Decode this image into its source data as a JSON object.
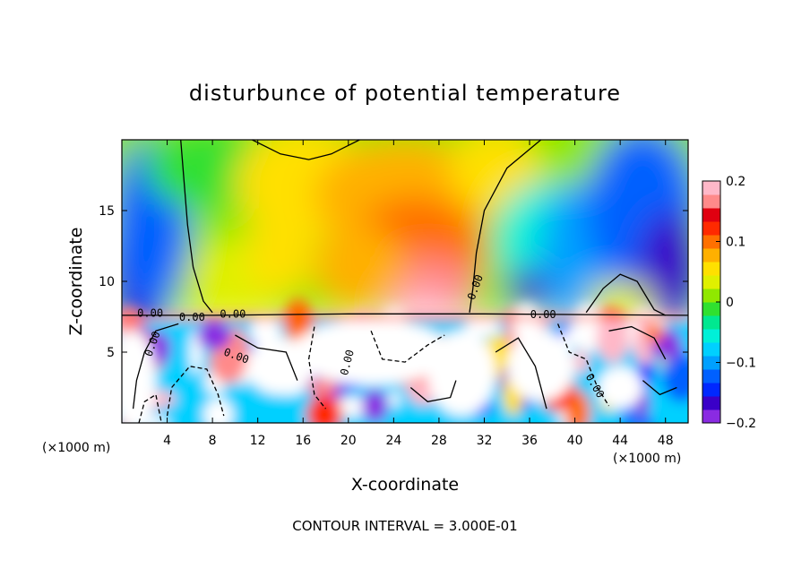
{
  "chart_data": {
    "type": "heatmap",
    "title": "disturbunce of potential temperature",
    "xlabel": "X-coordinate",
    "ylabel": "Z-coordinate",
    "x_unit": "(×1000 m)",
    "x_unit_right": "(×1000 m)",
    "xlim": [
      0,
      50
    ],
    "ylim": [
      0,
      20
    ],
    "x_ticks": [
      4,
      8,
      12,
      16,
      20,
      24,
      28,
      32,
      36,
      40,
      44,
      48
    ],
    "y_ticks": [
      5,
      10,
      15
    ],
    "colorbar": {
      "range": [
        -0.2,
        0.2
      ],
      "tick_values": [
        0.2,
        0.1,
        0,
        -0.1,
        -0.2
      ],
      "tick_labels": [
        "0.2",
        "0.1",
        "0",
        "−0.1",
        "−0.2"
      ],
      "colors": [
        "#8a2be2",
        "#3a00c8",
        "#0028ff",
        "#0060ff",
        "#00a0ff",
        "#00d0ff",
        "#00f0d8",
        "#00e890",
        "#30e030",
        "#90e800",
        "#e0f000",
        "#ffe000",
        "#ffb000",
        "#ff7000",
        "#ff2a00",
        "#e00010",
        "#ff8a8a",
        "#ffb8c8"
      ]
    },
    "contour_label": "0.00",
    "contour_interval_text": "CONTOUR INTERVAL = 3.000E-01",
    "layers": {
      "upper": "smooth field: positive (yellow-orange-red) maximum near x=24-30 just above z=7.5; negative (blue-purple) lobes near x=0-3 and x=40-50; near-zero (green) elsewhere",
      "lower": "turbulent region below z=7.5 with strong alternating positive (red) and negative (blue) eddies and white saturated patches"
    },
    "grid": false
  }
}
